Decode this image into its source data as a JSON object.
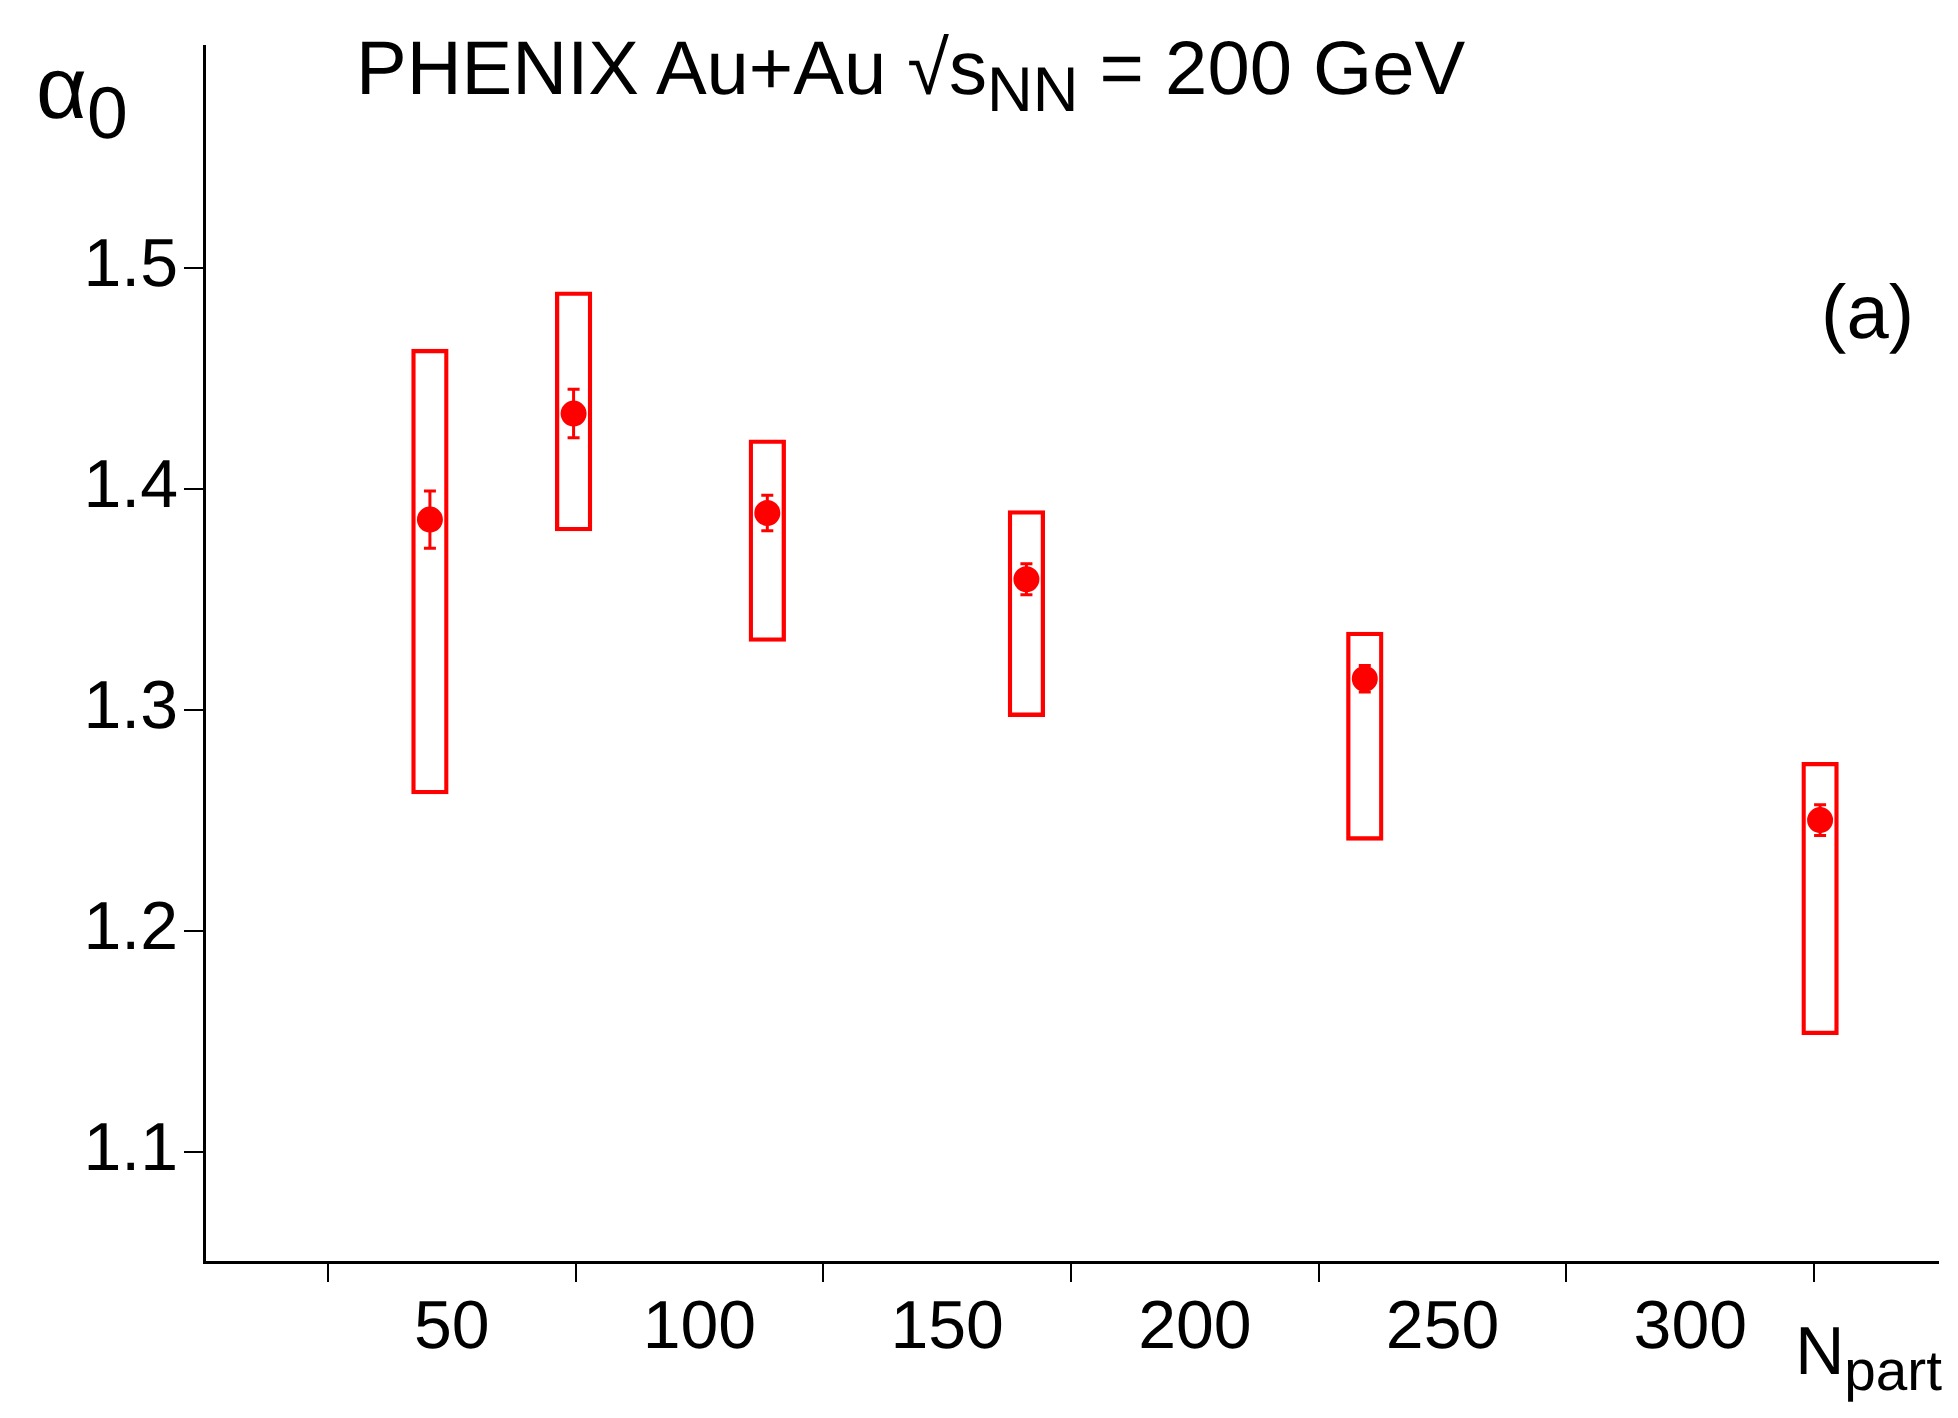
{
  "chart_data": {
    "type": "scatter",
    "title": "PHENIX Au+Au √s$_{NN}$ = 200 GeV",
    "xlabel": "N$_{part}$",
    "ylabel": "α$_{0}$",
    "annotations": [
      "(a)"
    ],
    "xlim": [
      0,
      350
    ],
    "xticks": [
      50,
      100,
      150,
      200,
      250,
      300
    ],
    "ylim": [
      1.05,
      1.6
    ],
    "yticks": [
      1.1,
      1.2,
      1.3,
      1.4,
      1.5
    ],
    "grid": false,
    "legend": false,
    "marker": "circle",
    "series": [
      {
        "color": "#ff0000",
        "x": [
          45.6,
          74.6,
          113.7,
          166,
          234.3,
          326.2
        ],
        "values": [
          1.386,
          1.434,
          1.389,
          1.359,
          1.314,
          1.25
        ],
        "errors": [
          0.013,
          0.011,
          0.008,
          0.007,
          0.006,
          0.007
        ]
      },
      {
        "type": "bar",
        "color": "#ff0000",
        "x": [
          45.6,
          74.6,
          113.7,
          166,
          234.3,
          326.2
        ],
        "base": [
          1.262,
          1.381,
          1.331,
          1.297,
          1.241,
          1.153
        ],
        "values": [
          0.201,
          0.108,
          0.091,
          0.093,
          0.094,
          0.123
        ]
      }
    ]
  }
}
